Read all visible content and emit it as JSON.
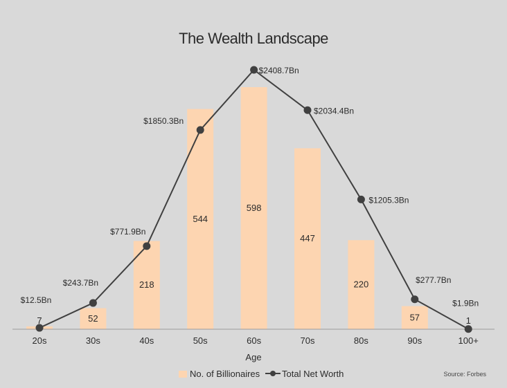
{
  "colors": {
    "background": "#d9d9d9",
    "bar": "#fdd5b1",
    "line": "#404040",
    "text": "#2b2b2b"
  },
  "chart_data": {
    "type": "bar",
    "title": "The Wealth Landscape",
    "xlabel": "Age",
    "ylabel": "",
    "categories": [
      "20s",
      "30s",
      "40s",
      "50s",
      "60s",
      "70s",
      "80s",
      "90s",
      "100+"
    ],
    "series": [
      {
        "name": "No. of Billionaires",
        "type": "bar",
        "values": [
          7,
          52,
          218,
          544,
          598,
          447,
          220,
          57,
          1
        ],
        "labels": [
          "7",
          "52",
          "218",
          "544",
          "598",
          "447",
          "220",
          "57",
          "1"
        ],
        "color": "#fdd5b1"
      },
      {
        "name": "Total Net Worth",
        "type": "line",
        "values": [
          12.5,
          243.7,
          771.9,
          1850.3,
          2408.7,
          2034.4,
          1205.3,
          277.7,
          1.9
        ],
        "labels": [
          "$12.5Bn",
          "$243.7Bn",
          "$771.9Bn",
          "$1850.3Bn",
          "$2408.7Bn",
          "$2034.4Bn",
          "$1205.3Bn",
          "$277.7Bn",
          "$1.9Bn"
        ],
        "color": "#404040"
      }
    ],
    "bar_ylim": [
      0,
      598
    ],
    "line_ylim": [
      0,
      2408.7
    ],
    "grid": false,
    "legend": "bottom",
    "source": "Source: Forbes"
  }
}
